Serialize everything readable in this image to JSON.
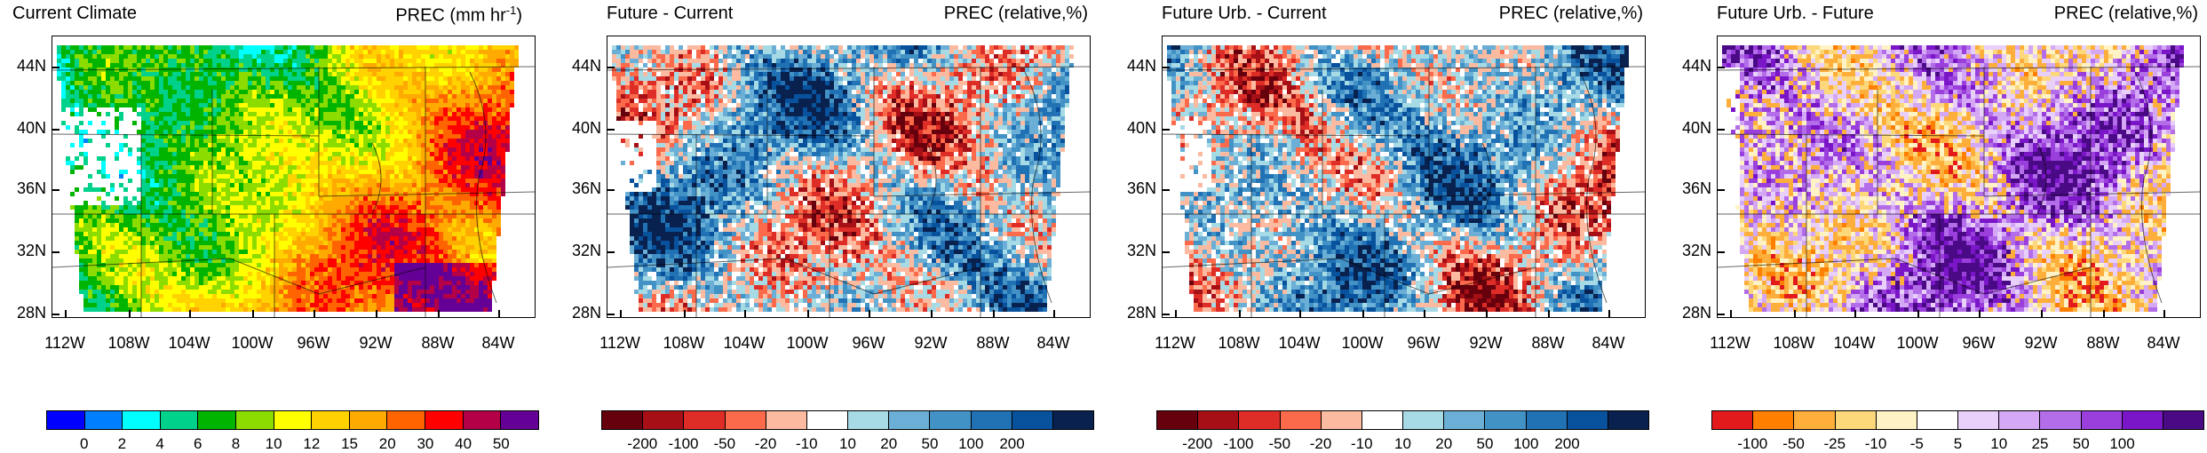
{
  "panels": [
    {
      "title_left": "Current Climate",
      "title_right": "PREC (mm hr",
      "title_right_sup": "-1",
      "title_right_end": ")",
      "colors": [
        "#0000ff",
        "#0080ff",
        "#00ffff",
        "#00d28c",
        "#00b400",
        "#8cdc00",
        "#ffff00",
        "#ffd200",
        "#ffaa00",
        "#ff6400",
        "#ff0000",
        "#b40046",
        "#640096"
      ],
      "cbar_labels": [
        "0",
        "2",
        "4",
        "6",
        "8",
        "10",
        "12",
        "15",
        "20",
        "30",
        "40",
        "50"
      ],
      "pattern": "prec"
    },
    {
      "title_left": "Future - Current",
      "title_right": "PREC (relative,%)",
      "title_right_sup": "",
      "title_right_end": "",
      "colors": [
        "#67000d",
        "#a50f15",
        "#de2d26",
        "#fb6a4a",
        "#fcbba1",
        "#ffffff",
        "#a6dbe6",
        "#6baed6",
        "#4292c6",
        "#2171b5",
        "#08519c",
        "#08214f"
      ],
      "cbar_labels": [
        "-200",
        "-100",
        "-50",
        "-20",
        "-10",
        "10",
        "20",
        "50",
        "100",
        "200"
      ],
      "pattern": "diff"
    },
    {
      "title_left": "Future Urb. - Current",
      "title_right": "PREC (relative,%)",
      "title_right_sup": "",
      "title_right_end": "",
      "colors": [
        "#67000d",
        "#a50f15",
        "#de2d26",
        "#fb6a4a",
        "#fcbba1",
        "#ffffff",
        "#a6dbe6",
        "#6baed6",
        "#4292c6",
        "#2171b5",
        "#08519c",
        "#08214f"
      ],
      "cbar_labels": [
        "-200",
        "-100",
        "-50",
        "-20",
        "-10",
        "10",
        "20",
        "50",
        "100",
        "200"
      ],
      "pattern": "diff"
    },
    {
      "title_left": "Future Urb. - Future",
      "title_right": "PREC (relative,%)",
      "title_right_sup": "",
      "title_right_end": "",
      "colors": [
        "#e31a1c",
        "#ff7f00",
        "#fdae3b",
        "#fdd87a",
        "#fff2c4",
        "#ffffff",
        "#e8d0fb",
        "#d4a8f5",
        "#b36de8",
        "#9a3fdc",
        "#7a16c8",
        "#4b0a85"
      ],
      "cbar_labels": [
        "-100",
        "-50",
        "-25",
        "-10",
        "-5",
        "5",
        "10",
        "25",
        "50",
        "100"
      ],
      "pattern": "urb"
    }
  ],
  "lat_labels": [
    "44N",
    "40N",
    "36N",
    "32N",
    "28N"
  ],
  "lon_labels": [
    "112W",
    "108W",
    "104W",
    "100W",
    "96W",
    "92W",
    "88W",
    "84W"
  ]
}
